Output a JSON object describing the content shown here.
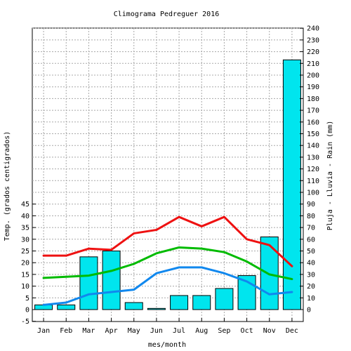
{
  "chart_data": {
    "type": "bar",
    "title": "Climograma Pedreguer 2016",
    "xlabel": "mes/month",
    "ylabel_left": "Temp. (grados centigrados)",
    "ylabel_right": "Pluja - Lluvia - Rain (mm)",
    "categories": [
      "Jan",
      "Feb",
      "Mar",
      "Apr",
      "May",
      "Jun",
      "Jul",
      "Aug",
      "Sep",
      "Oct",
      "Nov",
      "Dec"
    ],
    "left_axis": {
      "range": [
        -5,
        45
      ],
      "ticks": [
        -5,
        0,
        5,
        10,
        15,
        20,
        25,
        30,
        35,
        40,
        45
      ]
    },
    "right_axis": {
      "range": [
        0,
        240
      ],
      "ticks": [
        0,
        10,
        20,
        30,
        40,
        50,
        60,
        70,
        80,
        90,
        100,
        110,
        120,
        130,
        140,
        150,
        160,
        170,
        180,
        190,
        200,
        210,
        220,
        230,
        240
      ]
    },
    "grid": true,
    "rain": {
      "color": "#00e5ee",
      "values": [
        4,
        4,
        45,
        50,
        6,
        1,
        12,
        12,
        18,
        29,
        62,
        213
      ]
    },
    "series": [
      {
        "color": "#ee1111",
        "values": [
          23,
          23,
          26,
          25.5,
          32.5,
          34,
          39.5,
          35.5,
          39.5,
          30,
          27.5,
          18.5
        ]
      },
      {
        "color": "#00bb00",
        "values": [
          13.5,
          14,
          14.5,
          16.5,
          19.5,
          24,
          26.5,
          26,
          24.5,
          20.5,
          15,
          13
        ]
      },
      {
        "color": "#1188ee",
        "values": [
          2,
          3,
          6.5,
          7.5,
          8.5,
          15.5,
          18,
          18,
          15.5,
          12,
          6.5,
          7.5
        ]
      }
    ]
  }
}
